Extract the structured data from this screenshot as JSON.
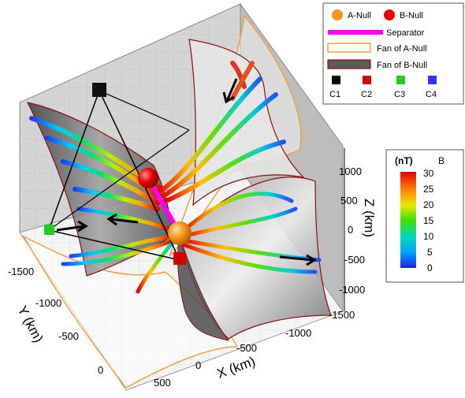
{
  "legend": {
    "a_null": "A-Null",
    "b_null": "B-Null",
    "separator": "Separator",
    "fan_a": "Fan of A-Null",
    "fan_b": "Fan of B-Null",
    "spacecraft": [
      "C1",
      "C2",
      "C3",
      "C4"
    ]
  },
  "colors": {
    "a_null": "#f7941d",
    "b_null": "#e60000",
    "separator": "#ff00ff",
    "fan_a_edge": "#f0a040",
    "fan_b_fill": "#5a5a5a",
    "c1": "#000000",
    "c2": "#cc0000",
    "c3": "#22cc22",
    "c4": "#3333ff"
  },
  "colorbar": {
    "unit": "(nT)",
    "label": "B",
    "ticks": [
      "30",
      "25",
      "20",
      "15",
      "10",
      "5",
      "0"
    ]
  },
  "axes": {
    "z": {
      "title": "Z (km)",
      "ticks": [
        "1000",
        "500",
        "0",
        "-500",
        "-1000"
      ]
    },
    "x": {
      "title": "X (km)",
      "ticks": [
        "-1500",
        "-1000",
        "-500",
        "0",
        "500"
      ]
    },
    "y": {
      "title": "Y (km)",
      "ticks": [
        "-1500",
        "-1000",
        "-500",
        "0"
      ]
    }
  }
}
